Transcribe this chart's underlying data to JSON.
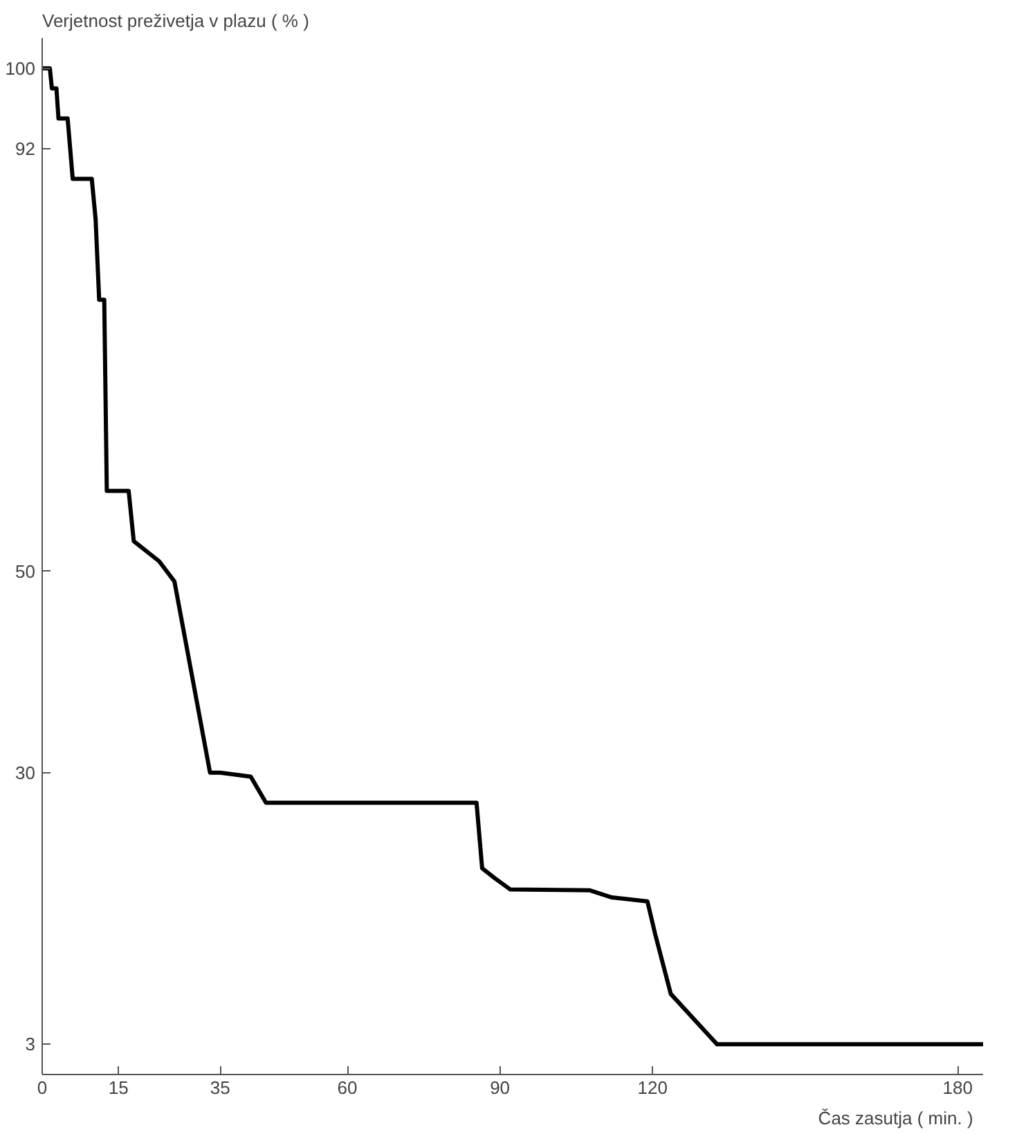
{
  "chart_data": {
    "type": "line",
    "ylabel": "Verjetnost preživetja v plazu ( % )",
    "xlabel": "Čas zasutja   ( min. )",
    "series": [
      {
        "color": "#000000",
        "x": [
          0,
          1.5,
          1.9,
          2.8,
          3.2,
          5,
          6,
          9.75,
          10.5,
          11.2,
          12.2,
          12.7,
          13.7,
          17,
          18,
          23,
          26,
          33,
          35,
          41,
          44,
          85.4,
          86.5,
          89,
          92,
          107.7,
          112,
          119,
          120.5,
          123.6,
          132.7,
          185
        ],
        "values": [
          100,
          100,
          98,
          98,
          95,
          95,
          89,
          89,
          85,
          77,
          77,
          58,
          58,
          58,
          53,
          51,
          49,
          30,
          30,
          29.6,
          27,
          27,
          20.5,
          19.5,
          18.4,
          18.3,
          17.6,
          17.2,
          14,
          8,
          3,
          3
        ]
      }
    ],
    "xlim": [
      0,
      185
    ],
    "ylim": [
      0,
      103
    ],
    "xticks": [
      0,
      15,
      35,
      60,
      90,
      120,
      180
    ],
    "yticks": [
      3,
      30,
      50,
      92,
      100
    ],
    "grid": false,
    "marker": "none",
    "line_style": "solid"
  }
}
